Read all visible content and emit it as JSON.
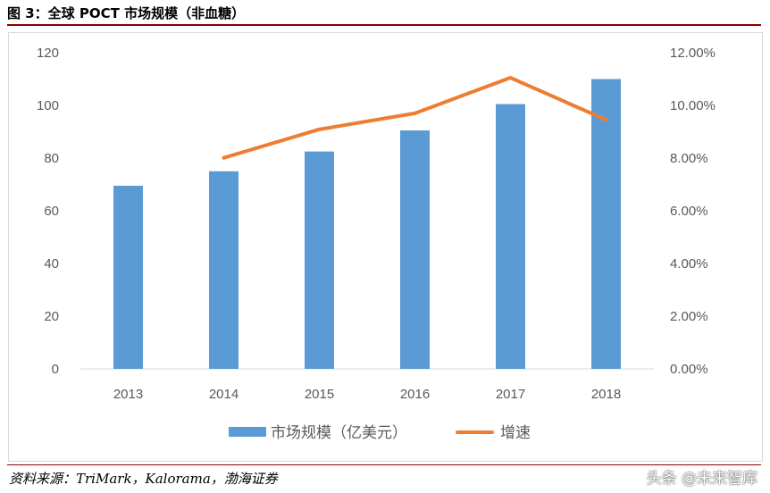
{
  "figure_title": "图 3：全球 POCT 市场规模（非血糖）",
  "source_text": "资料来源：TriMark，Kalorama，渤海证券",
  "watermark_text": "头条 @未来智库",
  "chart_data": {
    "type": "bar",
    "categories": [
      "2013",
      "2014",
      "2015",
      "2016",
      "2017",
      "2018"
    ],
    "series": [
      {
        "name": "市场规模（亿美元）",
        "type": "bar",
        "axis": "left",
        "values": [
          69.5,
          75,
          82.5,
          90.5,
          100.5,
          110
        ],
        "color": "#5b9bd5"
      },
      {
        "name": "增速",
        "type": "line",
        "axis": "right",
        "values": [
          null,
          0.0801,
          0.0909,
          0.097,
          0.1105,
          0.0945
        ],
        "color": "#ed7d31"
      }
    ],
    "y_left": {
      "min": 0,
      "max": 120,
      "step": 20,
      "tick_labels": [
        "0",
        "20",
        "40",
        "60",
        "80",
        "100",
        "120"
      ]
    },
    "y_right": {
      "min": 0,
      "max": 0.12,
      "step": 0.02,
      "tick_labels": [
        "0.00%",
        "2.00%",
        "4.00%",
        "6.00%",
        "8.00%",
        "10.00%",
        "12.00%"
      ]
    },
    "grid": false,
    "legend_position": "bottom"
  }
}
